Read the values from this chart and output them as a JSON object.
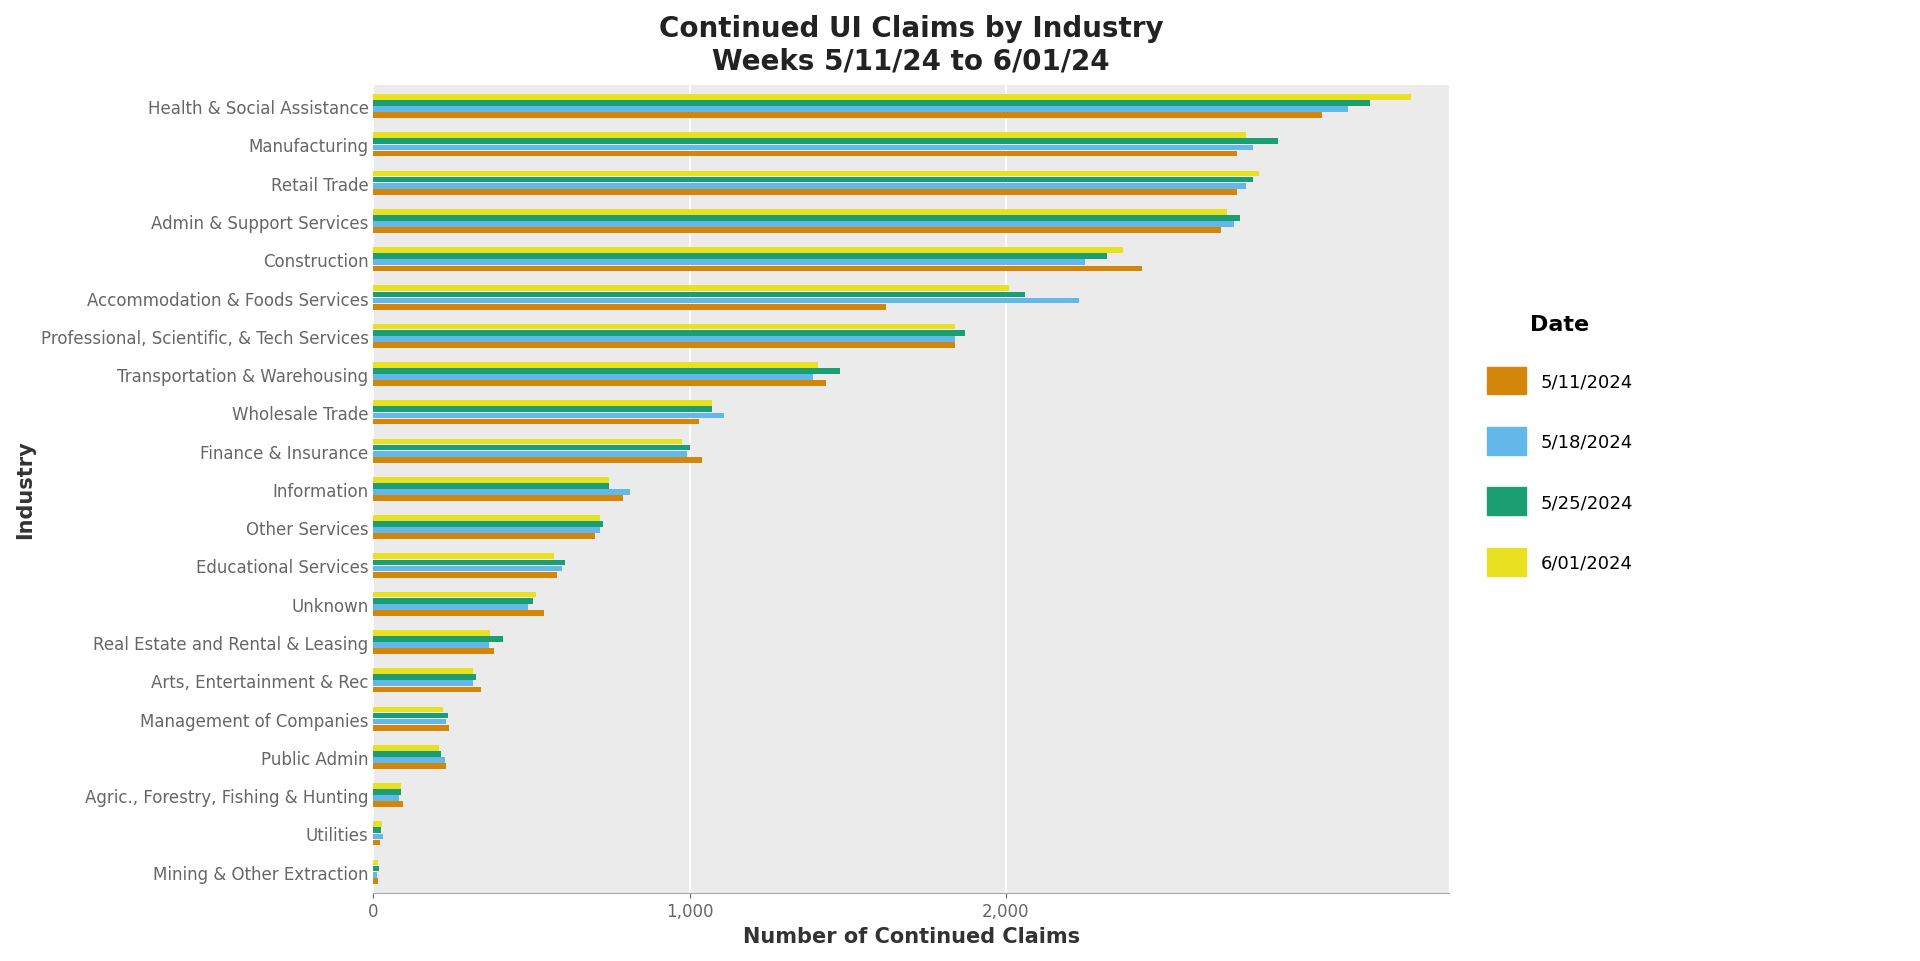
{
  "title": "Continued UI Claims by Industry\nWeeks 5/11/24 to 6/01/24",
  "xlabel": "Number of Continued Claims",
  "ylabel": "Industry",
  "legend_title": "Date",
  "dates": [
    "5/11/2024",
    "5/18/2024",
    "5/25/2024",
    "6/01/2024"
  ],
  "colors": [
    "#D4860A",
    "#62B8E8",
    "#1A9E72",
    "#E8E020"
  ],
  "industries": [
    "Health & Social Assistance",
    "Manufacturing",
    "Retail Trade",
    "Admin & Support Services",
    "Construction",
    "Accommodation & Foods Services",
    "Professional, Scientific, & Tech Services",
    "Transportation & Warehousing",
    "Wholesale Trade",
    "Finance & Insurance",
    "Information",
    "Other Services",
    "Educational Services",
    "Unknown",
    "Real Estate and Rental & Leasing",
    "Arts, Entertainment & Rec",
    "Management of Companies",
    "Public Admin",
    "Agric., Forestry, Fishing & Hunting",
    "Utilities",
    "Mining & Other Extraction"
  ],
  "values": {
    "5/11/2024": [
      3000,
      2730,
      2730,
      2680,
      2430,
      1620,
      1840,
      1430,
      1030,
      1040,
      790,
      700,
      580,
      540,
      380,
      340,
      240,
      230,
      95,
      22,
      15
    ],
    "5/18/2024": [
      3080,
      2780,
      2760,
      2720,
      2250,
      2230,
      1840,
      1390,
      1110,
      990,
      810,
      715,
      595,
      490,
      365,
      315,
      230,
      225,
      80,
      30,
      12
    ],
    "5/25/2024": [
      3150,
      2860,
      2780,
      2740,
      2320,
      2060,
      1870,
      1475,
      1070,
      1000,
      745,
      725,
      605,
      505,
      410,
      325,
      237,
      215,
      88,
      25,
      17
    ],
    "6/01/2024": [
      3280,
      2760,
      2800,
      2700,
      2370,
      2010,
      1840,
      1405,
      1070,
      975,
      745,
      715,
      570,
      515,
      370,
      315,
      220,
      208,
      88,
      27,
      15
    ]
  },
  "xticks": [
    0,
    1000,
    2000
  ],
  "xlim": [
    0,
    3400
  ],
  "background_color": "#EBEBEB",
  "title_fontsize": 20,
  "axis_label_fontsize": 15,
  "tick_fontsize": 12,
  "legend_fontsize": 13
}
